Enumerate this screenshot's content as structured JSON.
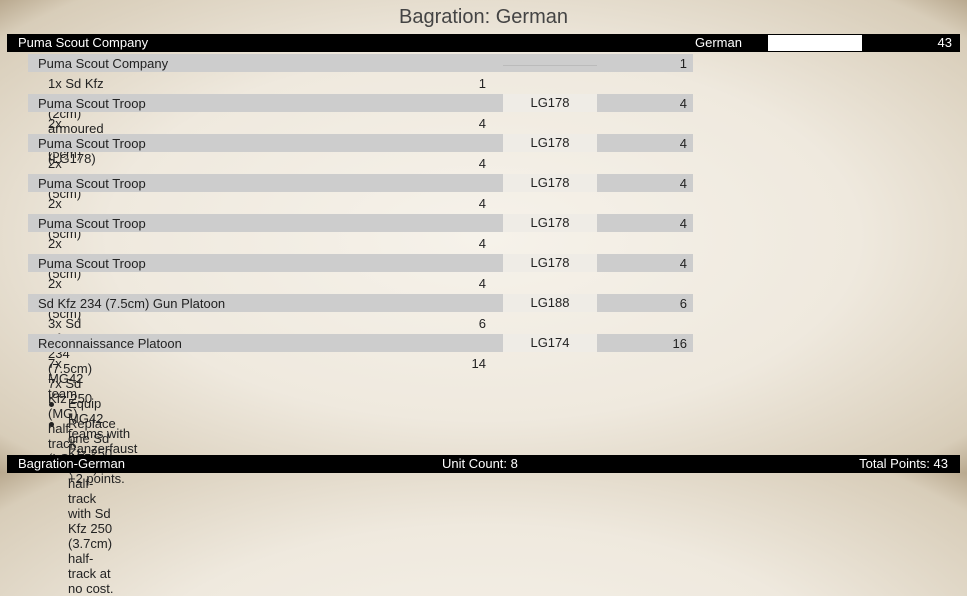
{
  "title": "Bagration: German",
  "header": {
    "name": "Puma Scout Company",
    "nation": "German",
    "points": "43"
  },
  "rows": [
    {
      "type": "unit",
      "name": "Puma Scout Company",
      "code": "",
      "points": "1"
    },
    {
      "type": "sub",
      "name": "1x Sd Kfz 234 (2cm) armoured car from (LG178)",
      "points": "1"
    },
    {
      "type": "unit",
      "name": "Puma Scout Troop",
      "code": "LG178",
      "points": "4"
    },
    {
      "type": "sub",
      "name": "2x Puma (5cm)",
      "points": "4"
    },
    {
      "type": "unit",
      "name": "Puma Scout Troop",
      "code": "LG178",
      "points": "4"
    },
    {
      "type": "sub",
      "name": "2x Puma (5cm)",
      "points": "4"
    },
    {
      "type": "unit",
      "name": "Puma Scout Troop",
      "code": "LG178",
      "points": "4"
    },
    {
      "type": "sub",
      "name": "2x Puma (5cm)",
      "points": "4"
    },
    {
      "type": "unit",
      "name": "Puma Scout Troop",
      "code": "LG178",
      "points": "4"
    },
    {
      "type": "sub",
      "name": "2x Puma (5cm)",
      "points": "4"
    },
    {
      "type": "unit",
      "name": "Puma Scout Troop",
      "code": "LG178",
      "points": "4"
    },
    {
      "type": "sub",
      "name": "2x Puma (5cm)",
      "points": "4"
    },
    {
      "type": "unit",
      "name": "Sd Kfz 234 (7.5cm) Gun Platoon",
      "code": "LG188",
      "points": "6"
    },
    {
      "type": "sub",
      "name": "3x Sd Kfz 234 (7.5cm)",
      "points": "6"
    },
    {
      "type": "unit",
      "name": "Reconnaissance Platoon",
      "code": "LG174",
      "points": "16"
    },
    {
      "type": "sub",
      "name": "7x MG42 team",
      "points": "14"
    },
    {
      "type": "sub",
      "name": "7x Sd Kfz 250 (MG) half-track (LG175)",
      "points": ""
    },
    {
      "type": "bullet",
      "name": "Equip MG42 teams with Panzerfaust anti-tank for +2 points.",
      "points": ""
    },
    {
      "type": "bullet",
      "name": "Replace one Sd Kfz 250 (MG) half-track with Sd Kfz 250 (3.7cm) half-track at no cost.",
      "points": ""
    }
  ],
  "footer": {
    "list_name": "Bagration-German",
    "unit_count": "Unit Count: 8",
    "total_points": "Total Points: 43"
  }
}
